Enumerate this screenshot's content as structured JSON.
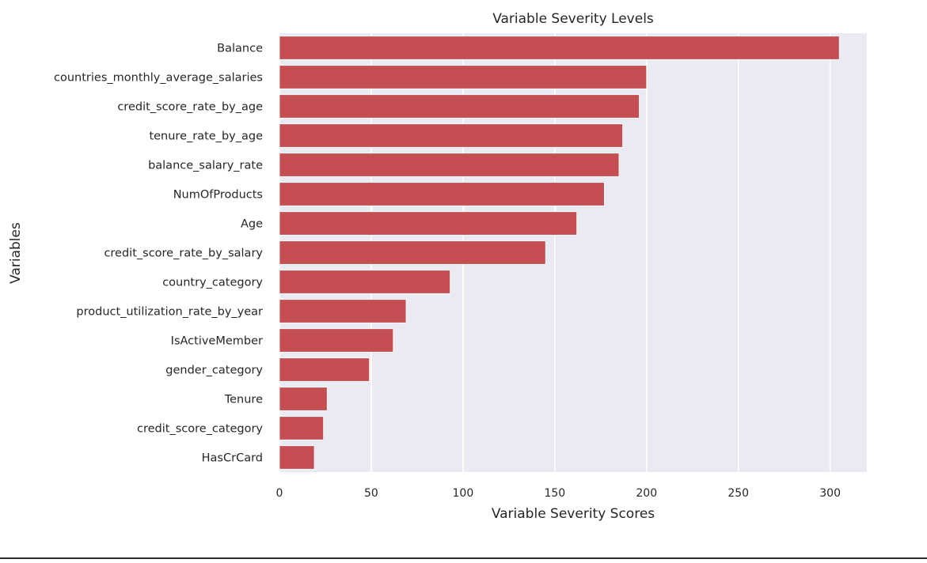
{
  "chart_data": {
    "type": "bar",
    "orientation": "horizontal",
    "title": "Variable Severity Levels",
    "xlabel": "Variable Severity Scores",
    "ylabel": "Variables",
    "xlim": [
      0,
      320
    ],
    "xticks": [
      0,
      50,
      100,
      150,
      200,
      250,
      300
    ],
    "grid": true,
    "bar_color": "#c44e52",
    "background_color": "#eaeaf2",
    "categories": [
      "Balance",
      "countries_monthly_average_salaries",
      "credit_score_rate_by_age",
      "tenure_rate_by_age",
      "balance_salary_rate",
      "NumOfProducts",
      "Age",
      "credit_score_rate_by_salary",
      "country_category",
      "product_utilization_rate_by_year",
      "IsActiveMember",
      "gender_category",
      "Tenure",
      "credit_score_category",
      "HasCrCard"
    ],
    "values": [
      305,
      200,
      196,
      187,
      185,
      177,
      162,
      145,
      93,
      69,
      62,
      49,
      26,
      24,
      19
    ]
  }
}
